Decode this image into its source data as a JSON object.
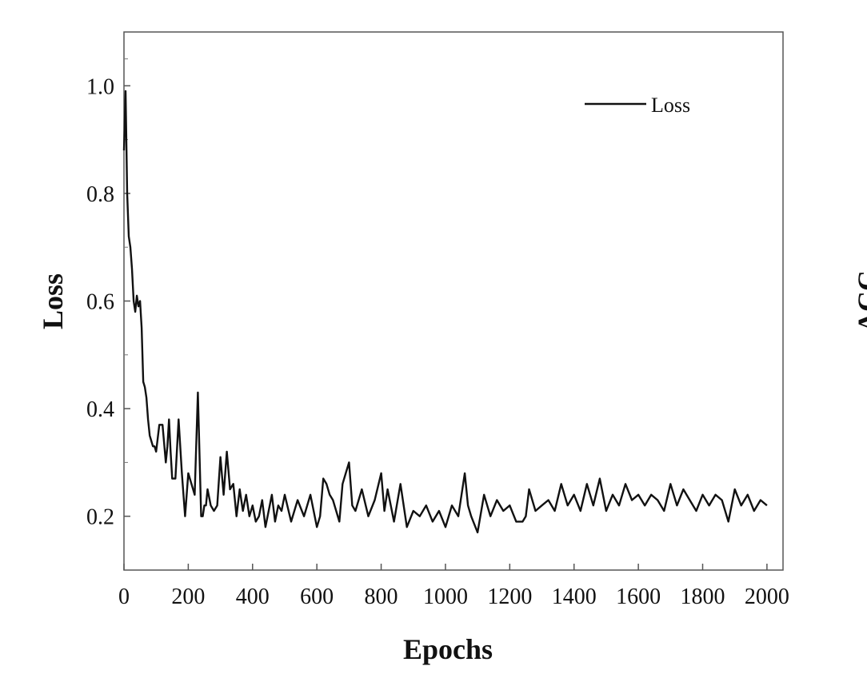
{
  "chart_data": {
    "type": "line",
    "xlabel": "Epochs",
    "ylabel": "Loss",
    "xlim": [
      0,
      2050
    ],
    "ylim": [
      0.1,
      1.1
    ],
    "x_ticks": [
      0,
      200,
      400,
      600,
      800,
      1000,
      1200,
      1400,
      1600,
      1800,
      2000
    ],
    "y_ticks": [
      0.2,
      0.4,
      0.6,
      0.8,
      1.0
    ],
    "y_tick_labels": [
      "0.2",
      "0.4",
      "0.6",
      "0.8",
      "1.0"
    ],
    "legend_position": "top-right",
    "grid": false,
    "series": [
      {
        "name": "Loss",
        "color": "#111111",
        "x": [
          0,
          5,
          10,
          15,
          20,
          25,
          30,
          35,
          40,
          45,
          50,
          55,
          60,
          65,
          70,
          75,
          80,
          85,
          90,
          95,
          100,
          110,
          120,
          130,
          135,
          140,
          145,
          150,
          160,
          170,
          180,
          190,
          200,
          210,
          220,
          230,
          240,
          245,
          250,
          255,
          260,
          270,
          280,
          290,
          300,
          310,
          320,
          330,
          340,
          350,
          360,
          370,
          380,
          390,
          400,
          410,
          420,
          430,
          440,
          450,
          460,
          470,
          480,
          490,
          500,
          520,
          540,
          560,
          580,
          600,
          610,
          620,
          630,
          640,
          650,
          670,
          680,
          690,
          700,
          710,
          720,
          740,
          760,
          780,
          800,
          810,
          820,
          840,
          860,
          880,
          900,
          920,
          940,
          960,
          980,
          1000,
          1020,
          1040,
          1060,
          1065,
          1070,
          1080,
          1100,
          1120,
          1140,
          1160,
          1180,
          1200,
          1220,
          1240,
          1250,
          1260,
          1280,
          1300,
          1320,
          1340,
          1360,
          1380,
          1400,
          1420,
          1440,
          1460,
          1480,
          1500,
          1520,
          1540,
          1560,
          1580,
          1600,
          1620,
          1640,
          1660,
          1680,
          1700,
          1720,
          1740,
          1760,
          1780,
          1800,
          1820,
          1840,
          1860,
          1880,
          1900,
          1920,
          1940,
          1960,
          1980,
          2000
        ],
        "y": [
          0.88,
          0.99,
          0.8,
          0.72,
          0.7,
          0.66,
          0.6,
          0.58,
          0.61,
          0.59,
          0.6,
          0.55,
          0.45,
          0.44,
          0.42,
          0.38,
          0.35,
          0.34,
          0.33,
          0.33,
          0.32,
          0.37,
          0.37,
          0.3,
          0.33,
          0.38,
          0.32,
          0.27,
          0.27,
          0.38,
          0.28,
          0.2,
          0.28,
          0.26,
          0.24,
          0.43,
          0.2,
          0.2,
          0.22,
          0.22,
          0.25,
          0.22,
          0.21,
          0.22,
          0.31,
          0.24,
          0.32,
          0.25,
          0.26,
          0.2,
          0.25,
          0.21,
          0.24,
          0.2,
          0.22,
          0.19,
          0.2,
          0.23,
          0.18,
          0.21,
          0.24,
          0.19,
          0.22,
          0.21,
          0.24,
          0.19,
          0.23,
          0.2,
          0.24,
          0.18,
          0.2,
          0.27,
          0.26,
          0.24,
          0.23,
          0.19,
          0.26,
          0.28,
          0.3,
          0.22,
          0.21,
          0.25,
          0.2,
          0.23,
          0.28,
          0.21,
          0.25,
          0.19,
          0.26,
          0.18,
          0.21,
          0.2,
          0.22,
          0.19,
          0.21,
          0.18,
          0.22,
          0.2,
          0.28,
          0.25,
          0.22,
          0.2,
          0.17,
          0.24,
          0.2,
          0.23,
          0.21,
          0.22,
          0.19,
          0.19,
          0.2,
          0.25,
          0.21,
          0.22,
          0.23,
          0.21,
          0.26,
          0.22,
          0.24,
          0.21,
          0.26,
          0.22,
          0.27,
          0.21,
          0.24,
          0.22,
          0.26,
          0.23,
          0.24,
          0.22,
          0.24,
          0.23,
          0.21,
          0.26,
          0.22,
          0.25,
          0.23,
          0.21,
          0.24,
          0.22,
          0.24,
          0.23,
          0.19,
          0.25,
          0.22,
          0.24,
          0.21,
          0.23,
          0.22
        ]
      }
    ]
  },
  "right_panel": {
    "cut_label": "ACC"
  }
}
